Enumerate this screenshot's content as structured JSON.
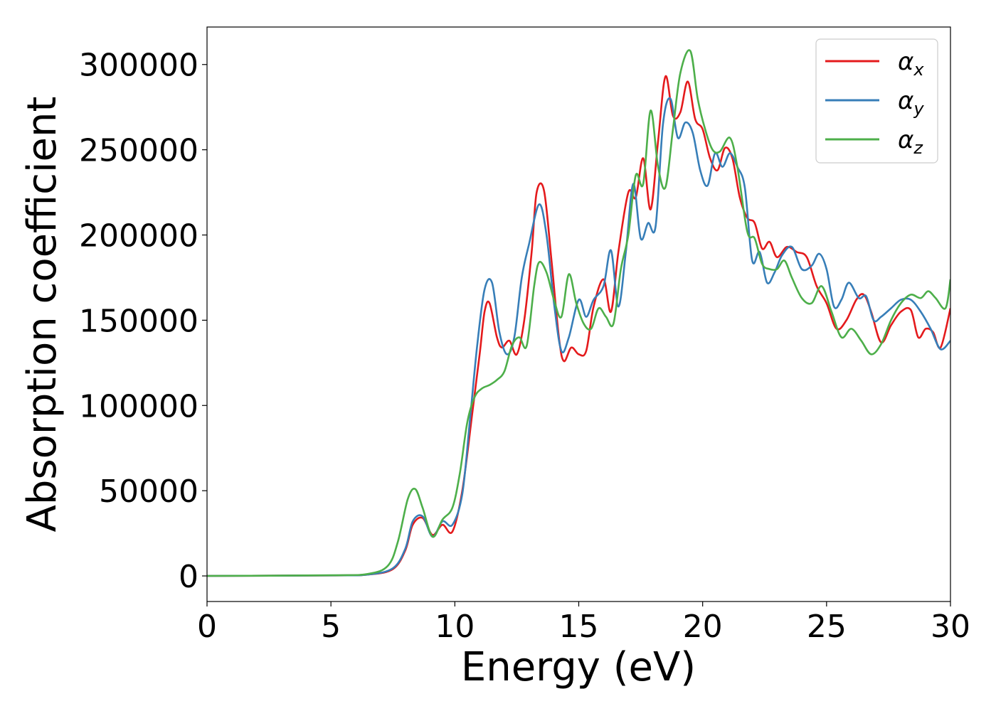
{
  "chart_data": {
    "type": "line",
    "title": "",
    "xlabel": "Energy (eV)",
    "ylabel": "Absorption coefficient",
    "xlim": [
      0,
      30
    ],
    "ylim": [
      -15000,
      322000
    ],
    "xticks": [
      0,
      5,
      10,
      15,
      20,
      25,
      30
    ],
    "yticks": [
      0,
      50000,
      100000,
      150000,
      200000,
      250000,
      300000
    ],
    "grid": false,
    "legend_position": "top-right",
    "series": [
      {
        "name": "αx",
        "legend_base": "α",
        "legend_sub": "x",
        "color": "#e41a1c",
        "points": [
          [
            0,
            0
          ],
          [
            5,
            300
          ],
          [
            6.5,
            800
          ],
          [
            7.5,
            4000
          ],
          [
            8,
            15000
          ],
          [
            8.3,
            30000
          ],
          [
            8.7,
            34000
          ],
          [
            9.1,
            24000
          ],
          [
            9.5,
            30000
          ],
          [
            9.9,
            26000
          ],
          [
            10.3,
            50000
          ],
          [
            10.7,
            95000
          ],
          [
            11,
            130000
          ],
          [
            11.2,
            155000
          ],
          [
            11.4,
            160000
          ],
          [
            11.7,
            140000
          ],
          [
            11.9,
            134000
          ],
          [
            12.2,
            138000
          ],
          [
            12.5,
            130000
          ],
          [
            12.8,
            150000
          ],
          [
            13.1,
            190000
          ],
          [
            13.3,
            225000
          ],
          [
            13.6,
            226000
          ],
          [
            13.9,
            185000
          ],
          [
            14.2,
            140000
          ],
          [
            14.4,
            126000
          ],
          [
            14.7,
            134000
          ],
          [
            15,
            130000
          ],
          [
            15.3,
            132000
          ],
          [
            15.6,
            158000
          ],
          [
            16,
            174000
          ],
          [
            16.3,
            155000
          ],
          [
            16.6,
            190000
          ],
          [
            17,
            225000
          ],
          [
            17.3,
            222000
          ],
          [
            17.6,
            245000
          ],
          [
            17.9,
            215000
          ],
          [
            18.2,
            255000
          ],
          [
            18.5,
            293000
          ],
          [
            18.8,
            270000
          ],
          [
            19.1,
            272000
          ],
          [
            19.4,
            290000
          ],
          [
            19.7,
            268000
          ],
          [
            20,
            262000
          ],
          [
            20.3,
            245000
          ],
          [
            20.6,
            238000
          ],
          [
            20.9,
            251000
          ],
          [
            21.2,
            245000
          ],
          [
            21.5,
            222000
          ],
          [
            21.8,
            210000
          ],
          [
            22.1,
            207000
          ],
          [
            22.4,
            192000
          ],
          [
            22.7,
            196000
          ],
          [
            23,
            187000
          ],
          [
            23.4,
            193000
          ],
          [
            23.8,
            190000
          ],
          [
            24.2,
            187000
          ],
          [
            24.6,
            170000
          ],
          [
            25,
            160000
          ],
          [
            25.4,
            145000
          ],
          [
            25.8,
            150000
          ],
          [
            26.2,
            162000
          ],
          [
            26.5,
            165000
          ],
          [
            26.8,
            155000
          ],
          [
            27.2,
            137000
          ],
          [
            27.6,
            147000
          ],
          [
            28,
            155000
          ],
          [
            28.4,
            156000
          ],
          [
            28.7,
            140000
          ],
          [
            29,
            145000
          ],
          [
            29.3,
            143000
          ],
          [
            29.6,
            134000
          ],
          [
            30,
            157000
          ]
        ]
      },
      {
        "name": "αy",
        "legend_base": "α",
        "legend_sub": "y",
        "color": "#377eb8",
        "points": [
          [
            0,
            0
          ],
          [
            5,
            300
          ],
          [
            6.5,
            800
          ],
          [
            7.5,
            4500
          ],
          [
            8,
            16000
          ],
          [
            8.3,
            32000
          ],
          [
            8.7,
            35000
          ],
          [
            9.1,
            23000
          ],
          [
            9.5,
            32000
          ],
          [
            9.9,
            30000
          ],
          [
            10.3,
            48000
          ],
          [
            10.6,
            90000
          ],
          [
            10.9,
            135000
          ],
          [
            11.2,
            168000
          ],
          [
            11.5,
            172000
          ],
          [
            11.8,
            143000
          ],
          [
            12.1,
            130000
          ],
          [
            12.4,
            140000
          ],
          [
            12.7,
            175000
          ],
          [
            13,
            195000
          ],
          [
            13.4,
            218000
          ],
          [
            13.7,
            200000
          ],
          [
            14,
            160000
          ],
          [
            14.3,
            132000
          ],
          [
            14.6,
            140000
          ],
          [
            15,
            162000
          ],
          [
            15.3,
            152000
          ],
          [
            15.6,
            162000
          ],
          [
            16,
            170000
          ],
          [
            16.3,
            191000
          ],
          [
            16.6,
            158000
          ],
          [
            16.9,
            190000
          ],
          [
            17.2,
            230000
          ],
          [
            17.5,
            198000
          ],
          [
            17.8,
            207000
          ],
          [
            18.1,
            205000
          ],
          [
            18.4,
            265000
          ],
          [
            18.7,
            280000
          ],
          [
            19,
            257000
          ],
          [
            19.3,
            266000
          ],
          [
            19.6,
            260000
          ],
          [
            19.9,
            238000
          ],
          [
            20.2,
            229000
          ],
          [
            20.5,
            248000
          ],
          [
            20.8,
            240000
          ],
          [
            21.1,
            248000
          ],
          [
            21.4,
            240000
          ],
          [
            21.7,
            228000
          ],
          [
            22,
            185000
          ],
          [
            22.3,
            190000
          ],
          [
            22.6,
            172000
          ],
          [
            22.9,
            178000
          ],
          [
            23.2,
            188000
          ],
          [
            23.6,
            193000
          ],
          [
            24,
            180000
          ],
          [
            24.4,
            182000
          ],
          [
            24.7,
            189000
          ],
          [
            25,
            180000
          ],
          [
            25.3,
            158000
          ],
          [
            25.6,
            162000
          ],
          [
            25.9,
            172000
          ],
          [
            26.3,
            163000
          ],
          [
            26.6,
            164000
          ],
          [
            26.9,
            150000
          ],
          [
            27.2,
            152000
          ],
          [
            27.6,
            157000
          ],
          [
            28,
            162000
          ],
          [
            28.4,
            162000
          ],
          [
            28.8,
            155000
          ],
          [
            29.2,
            145000
          ],
          [
            29.6,
            133000
          ],
          [
            30,
            138000
          ]
        ]
      },
      {
        "name": "αz",
        "legend_base": "α",
        "legend_sub": "z",
        "color": "#4daf4a",
        "points": [
          [
            0,
            0
          ],
          [
            5,
            400
          ],
          [
            6.5,
            1200
          ],
          [
            7.3,
            6000
          ],
          [
            7.7,
            20000
          ],
          [
            8.1,
            45000
          ],
          [
            8.4,
            51000
          ],
          [
            8.7,
            40000
          ],
          [
            9.1,
            23000
          ],
          [
            9.5,
            33000
          ],
          [
            9.9,
            40000
          ],
          [
            10.2,
            60000
          ],
          [
            10.5,
            90000
          ],
          [
            10.8,
            105000
          ],
          [
            11.1,
            110000
          ],
          [
            11.4,
            112000
          ],
          [
            11.7,
            115000
          ],
          [
            12,
            120000
          ],
          [
            12.3,
            135000
          ],
          [
            12.6,
            140000
          ],
          [
            12.9,
            135000
          ],
          [
            13.2,
            170000
          ],
          [
            13.4,
            184000
          ],
          [
            13.7,
            178000
          ],
          [
            14,
            162000
          ],
          [
            14.3,
            152000
          ],
          [
            14.6,
            177000
          ],
          [
            14.9,
            160000
          ],
          [
            15.2,
            148000
          ],
          [
            15.5,
            145000
          ],
          [
            15.8,
            157000
          ],
          [
            16.1,
            152000
          ],
          [
            16.4,
            148000
          ],
          [
            16.7,
            180000
          ],
          [
            17,
            200000
          ],
          [
            17.3,
            235000
          ],
          [
            17.6,
            230000
          ],
          [
            17.9,
            273000
          ],
          [
            18.2,
            240000
          ],
          [
            18.5,
            228000
          ],
          [
            18.8,
            262000
          ],
          [
            19.1,
            295000
          ],
          [
            19.5,
            308000
          ],
          [
            19.8,
            280000
          ],
          [
            20.1,
            262000
          ],
          [
            20.4,
            250000
          ],
          [
            20.7,
            249000
          ],
          [
            21.1,
            257000
          ],
          [
            21.4,
            240000
          ],
          [
            21.8,
            202000
          ],
          [
            22.1,
            198000
          ],
          [
            22.4,
            183000
          ],
          [
            22.7,
            180000
          ],
          [
            23,
            180000
          ],
          [
            23.3,
            185000
          ],
          [
            23.6,
            175000
          ],
          [
            24,
            163000
          ],
          [
            24.4,
            160000
          ],
          [
            24.8,
            170000
          ],
          [
            25.2,
            155000
          ],
          [
            25.6,
            140000
          ],
          [
            26,
            145000
          ],
          [
            26.4,
            138000
          ],
          [
            26.8,
            130000
          ],
          [
            27.2,
            136000
          ],
          [
            27.6,
            150000
          ],
          [
            28,
            160000
          ],
          [
            28.4,
            165000
          ],
          [
            28.8,
            163000
          ],
          [
            29.1,
            167000
          ],
          [
            29.4,
            163000
          ],
          [
            29.8,
            157000
          ],
          [
            30,
            174000
          ]
        ]
      }
    ]
  }
}
